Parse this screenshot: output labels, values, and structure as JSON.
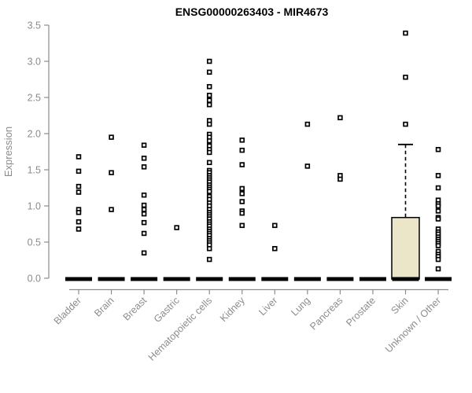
{
  "chart_data": {
    "type": "boxplot",
    "title": "ENSG00000263403 - MIR4673",
    "ylabel": "Expression",
    "xlabel": "",
    "ylim": [
      0,
      3.5
    ],
    "ytick_labels": [
      "0.0",
      "0.5",
      "1.0",
      "1.5",
      "2.0",
      "2.5",
      "3.0",
      "3.5"
    ],
    "grid": false,
    "legend": null,
    "marker": "open-square",
    "categories": [
      "Bladder",
      "Brain",
      "Breast",
      "Gastric",
      "Hematopoietic cells",
      "Kidney",
      "Liver",
      "Lung",
      "Pancreas",
      "Prostate",
      "Skin",
      "Unknown / Other"
    ],
    "series": [
      {
        "category": "Bladder",
        "median": 0,
        "q1": 0,
        "q3": 0,
        "whisker_high": 0,
        "points": [
          1.68,
          1.48,
          1.27,
          1.19,
          0.95,
          0.91,
          0.78,
          0.68
        ]
      },
      {
        "category": "Brain",
        "median": 0,
        "q1": 0,
        "q3": 0,
        "whisker_high": 0,
        "points": [
          1.95,
          1.46,
          0.95
        ]
      },
      {
        "category": "Breast",
        "median": 0,
        "q1": 0,
        "q3": 0,
        "whisker_high": 0,
        "points": [
          1.84,
          1.66,
          1.54,
          1.15,
          1.01,
          0.95,
          0.89,
          0.77,
          0.62,
          0.35
        ]
      },
      {
        "category": "Gastric",
        "median": 0,
        "q1": 0,
        "q3": 0,
        "whisker_high": 0,
        "points": [
          0.7
        ]
      },
      {
        "category": "Hematopoietic cells",
        "median": 0,
        "q1": 0,
        "q3": 0,
        "whisker_high": 0,
        "points": [
          3.0,
          2.85,
          2.65,
          2.53,
          2.46,
          2.4,
          2.18,
          2.13,
          1.99,
          1.95,
          1.9,
          1.83,
          1.78,
          1.74,
          1.6,
          1.49,
          1.46,
          1.42,
          1.39,
          1.36,
          1.33,
          1.29,
          1.26,
          1.23,
          1.2,
          1.13,
          1.09,
          1.04,
          1.0,
          0.95,
          0.91,
          0.88,
          0.85,
          0.82,
          0.78,
          0.75,
          0.72,
          0.68,
          0.65,
          0.62,
          0.59,
          0.55,
          0.52,
          0.49,
          0.46,
          0.41,
          0.26
        ]
      },
      {
        "category": "Kidney",
        "median": 0,
        "q1": 0,
        "q3": 0,
        "whisker_high": 0,
        "points": [
          1.91,
          1.77,
          1.57,
          1.24,
          1.17,
          1.06,
          0.93,
          0.9,
          0.73
        ]
      },
      {
        "category": "Liver",
        "median": 0,
        "q1": 0,
        "q3": 0,
        "whisker_high": 0,
        "points": [
          0.73,
          0.41
        ]
      },
      {
        "category": "Lung",
        "median": 0,
        "q1": 0,
        "q3": 0,
        "whisker_high": 0,
        "points": [
          2.13,
          1.55
        ]
      },
      {
        "category": "Pancreas",
        "median": 0,
        "q1": 0,
        "q3": 0,
        "whisker_high": 0,
        "points": [
          2.22,
          1.42,
          1.37
        ]
      },
      {
        "category": "Prostate",
        "median": 0,
        "q1": 0,
        "q3": 0,
        "whisker_high": 0,
        "points": []
      },
      {
        "category": "Skin",
        "median": 0,
        "q1": 0,
        "q3": 0.84,
        "whisker_high": 1.85,
        "points": [
          3.39,
          2.78,
          2.13
        ]
      },
      {
        "category": "Unknown / Other",
        "median": 0,
        "q1": 0,
        "q3": 0,
        "whisker_high": 0,
        "points": [
          1.78,
          1.42,
          1.25,
          1.08,
          1.03,
          1.0,
          0.93,
          0.84,
          0.82,
          0.68,
          0.64,
          0.61,
          0.57,
          0.54,
          0.51,
          0.48,
          0.45,
          0.37,
          0.33,
          0.3,
          0.26,
          0.13
        ]
      }
    ],
    "colors": {
      "axis": "#8c8c8c",
      "tick_text": "#8c8c8c",
      "title_text": "#000000",
      "marker_stroke": "#000000",
      "marker_fill": "#ffffff",
      "median_bar": "#000000",
      "box_fill": "#ECE6C9",
      "box_stroke": "#000000",
      "background": "#ffffff"
    }
  }
}
